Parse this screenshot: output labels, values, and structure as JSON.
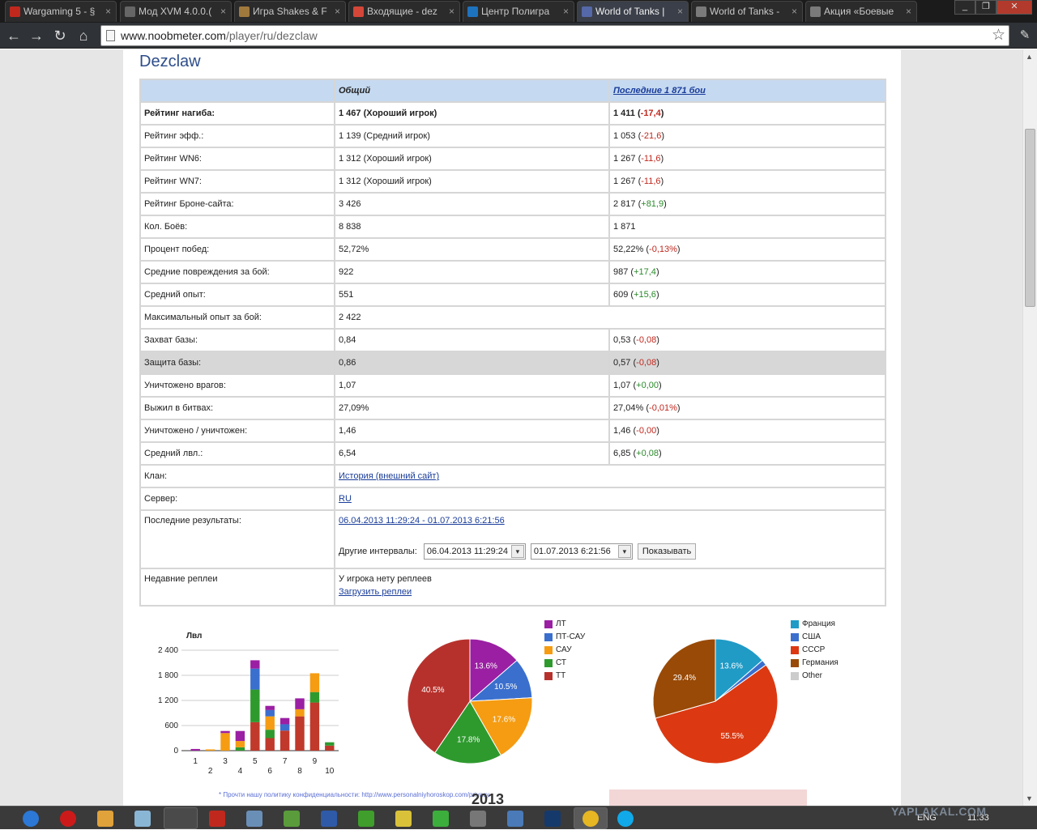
{
  "tabs": [
    {
      "label": "Wargaming 5 - §",
      "color": "#c0281e"
    },
    {
      "label": "Мод XVM 4.0.0.(",
      "color": "#666666"
    },
    {
      "label": "Игра Shakes & F",
      "color": "#a07a3c"
    },
    {
      "label": "Входящие - dez",
      "color": "#d44638"
    },
    {
      "label": "Центр Полигра",
      "color": "#1e73be"
    },
    {
      "label": "World of Tanks |",
      "color": "#5568a8"
    },
    {
      "label": "World of Tanks -",
      "color": "#7a7a7a"
    },
    {
      "label": "Акция «Боевые",
      "color": "#7a7a7a"
    }
  ],
  "address": {
    "host": "www.noobmeter.com",
    "path": "/player/ru/dezclaw"
  },
  "player_name": "Dezclaw",
  "header": {
    "col1": "Общий",
    "col2": "Последние 1 871 бои"
  },
  "rows": [
    {
      "label": "Рейтинг нагиба:",
      "total": "1 467 (Хороший игрок)",
      "recent": "1 411",
      "delta": "-17,4",
      "sign": "neg",
      "bold": true
    },
    {
      "label": "Рейтинг эфф.:",
      "total": "1 139 (Средний игрок)",
      "recent": "1 053",
      "delta": "-21,6",
      "sign": "neg"
    },
    {
      "label": "Рейтинг WN6:",
      "total": "1 312 (Хороший игрок)",
      "recent": "1 267",
      "delta": "-11,6",
      "sign": "neg"
    },
    {
      "label": "Рейтинг WN7:",
      "total": "1 312 (Хороший игрок)",
      "recent": "1 267",
      "delta": "-11,6",
      "sign": "neg"
    },
    {
      "label": "Рейтинг Броне-сайта:",
      "total": "3 426",
      "recent": "2 817",
      "delta": "+81,9",
      "sign": "pos"
    },
    {
      "label": "Кол. Боёв:",
      "total": "8 838",
      "recent": "1 871",
      "delta": "",
      "sign": ""
    },
    {
      "label": "Процент побед:",
      "total": "52,72%",
      "recent": "52,22%",
      "delta": "-0,13%",
      "sign": "neg"
    },
    {
      "label": "Средние повреждения за бой:",
      "total": "922",
      "recent": "987",
      "delta": "+17,4",
      "sign": "pos"
    },
    {
      "label": "Средний опыт:",
      "total": "551",
      "recent": "609",
      "delta": "+15,6",
      "sign": "pos"
    },
    {
      "label": "Максимальный опыт за бой:",
      "total": "2 422",
      "recent": "",
      "delta": "",
      "sign": "",
      "span": true
    },
    {
      "label": "Захват базы:",
      "total": "0,84",
      "recent": "0,53",
      "delta": "-0,08",
      "sign": "neg"
    },
    {
      "label": "Защита базы:",
      "total": "0,86",
      "recent": "0,57",
      "delta": "-0,08",
      "sign": "neg",
      "shade": true
    },
    {
      "label": "Уничтожено врагов:",
      "total": "1,07",
      "recent": "1,07",
      "delta": "+0,00",
      "sign": "pos"
    },
    {
      "label": "Выжил в битвах:",
      "total": "27,09%",
      "recent": "27,04%",
      "delta": "-0,01%",
      "sign": "neg"
    },
    {
      "label": "Уничтожено / уничтожен:",
      "total": "1,46",
      "recent": "1,46",
      "delta": "-0,00",
      "sign": "neg"
    },
    {
      "label": "Средний лвл.:",
      "total": "6,54",
      "recent": "6,85",
      "delta": "+0,08",
      "sign": "pos"
    }
  ],
  "clan": {
    "label": "Клан:",
    "link": "История (внешний сайт)"
  },
  "server": {
    "label": "Сервер:",
    "link": "RU"
  },
  "results": {
    "label": "Последние результаты:",
    "link": "06.04.2013 11:29:24 - 01.07.2013 6:21:56",
    "intervals_label": "Другие интервалы:",
    "from": "06.04.2013 11:29:24",
    "to": "01.07.2013 6:21:56",
    "show_button": "Показывать"
  },
  "replays": {
    "label": "Недавние реплеи",
    "none_text": "У игрока нету реплеев",
    "upload_link": "Загрузить реплеи"
  },
  "chart_data": [
    {
      "type": "bar",
      "stacked": true,
      "title": "Лвл",
      "categories": [
        "1",
        "2",
        "3",
        "4",
        "5",
        "6",
        "7",
        "8",
        "9",
        "10"
      ],
      "ylim": [
        0,
        2400
      ],
      "yticks": [
        "0",
        "600",
        "1 200",
        "1 800",
        "2 400"
      ],
      "series": [
        {
          "name": "ТТ",
          "color": "#c0392b",
          "values": [
            0,
            0,
            0,
            0,
            680,
            300,
            480,
            820,
            1150,
            120
          ]
        },
        {
          "name": "СТ",
          "color": "#2e9a2e",
          "values": [
            0,
            0,
            0,
            80,
            780,
            200,
            0,
            0,
            250,
            80
          ]
        },
        {
          "name": "САУ",
          "color": "#f59c12",
          "values": [
            0,
            30,
            420,
            150,
            0,
            320,
            0,
            170,
            450,
            0
          ]
        },
        {
          "name": "ПТ-САУ",
          "color": "#3a6fce",
          "values": [
            0,
            0,
            0,
            0,
            500,
            150,
            150,
            0,
            0,
            0
          ]
        },
        {
          "name": "ЛТ",
          "color": "#9b1fa3",
          "values": [
            40,
            0,
            50,
            240,
            200,
            100,
            150,
            260,
            0,
            0
          ]
        }
      ]
    },
    {
      "type": "pie",
      "labels": [
        "ЛТ",
        "ПТ-САУ",
        "САУ",
        "СТ",
        "ТТ"
      ],
      "values": [
        13.6,
        10.5,
        17.6,
        17.8,
        40.5
      ],
      "label_text": [
        "13.6%",
        "10.5%",
        "17.6%",
        "17.8%",
        "40.5%"
      ],
      "colors": [
        "#9b1fa3",
        "#3a6fce",
        "#f59c12",
        "#2e9a2e",
        "#b7312c"
      ]
    },
    {
      "type": "pie",
      "labels": [
        "Франция",
        "США",
        "СССР",
        "Германия",
        "Other"
      ],
      "values": [
        13.6,
        1.5,
        55.5,
        29.4,
        0
      ],
      "label_text": [
        "13.6%",
        "",
        "55.5%",
        "29.4%",
        ""
      ],
      "colors": [
        "#1f9bc6",
        "#3a6fce",
        "#dc3912",
        "#994a06",
        "#cccccc"
      ]
    }
  ],
  "footer_note": "* Прочти нашу политику конфиденциальности: http://www.personalniyhoroskop.com/privacy",
  "banner_text": "2013",
  "tray": {
    "lang": "ENG",
    "time": "11:33"
  },
  "watermark": "YAPLAKAL.COM"
}
